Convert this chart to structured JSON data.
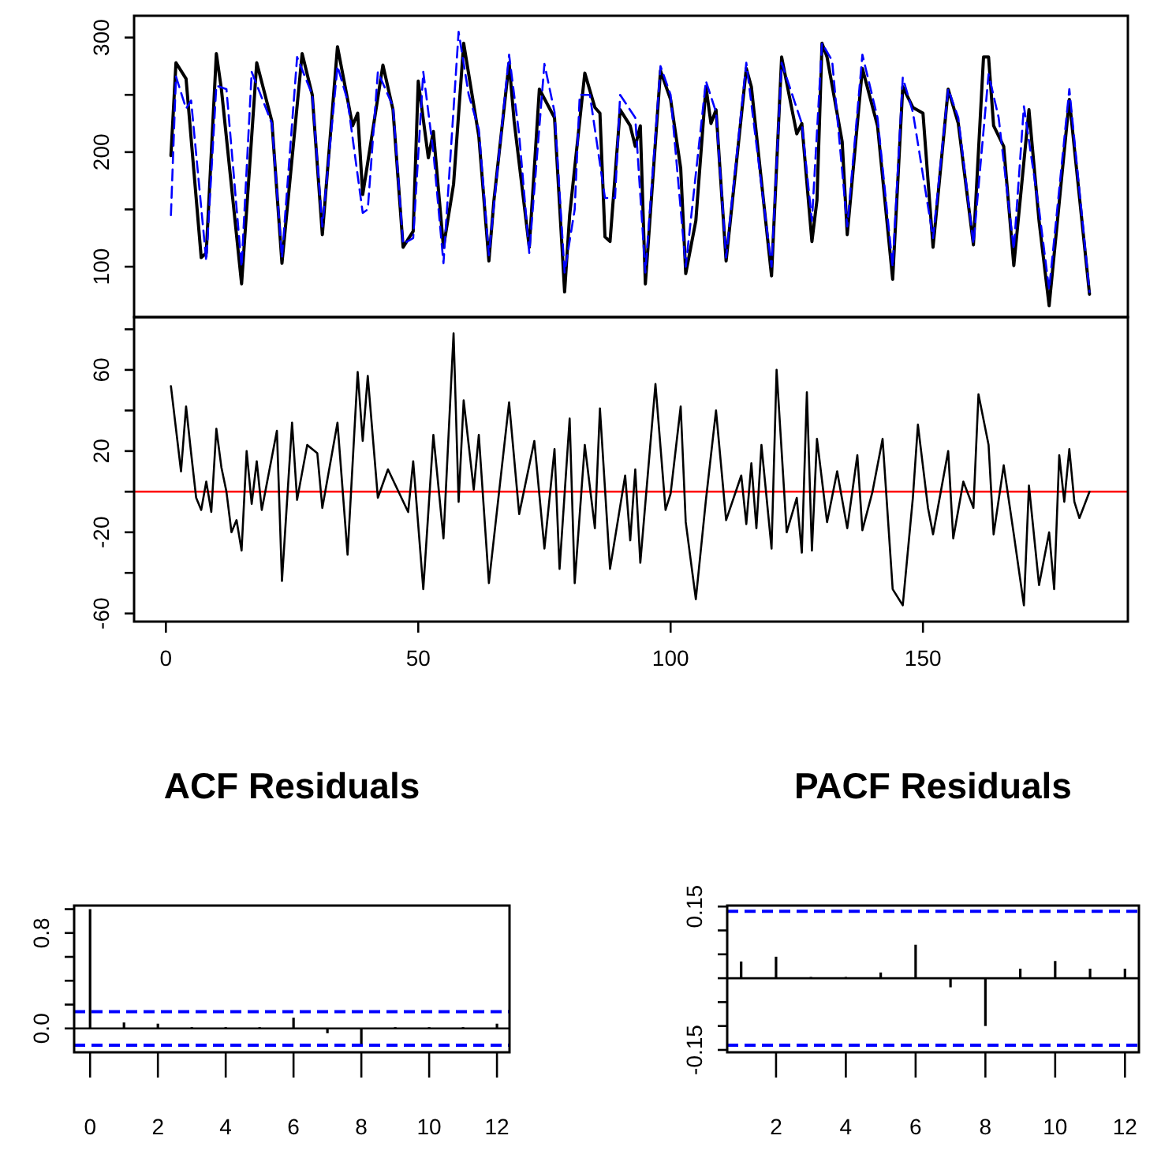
{
  "chart_data": [
    {
      "type": "line",
      "xlim": [
        -6.3,
        190.6
      ],
      "ylim": [
        56,
        319
      ],
      "yticks": [
        100,
        {
          "value": 150,
          "label": null
        },
        200,
        {
          "value": 250,
          "label": null
        },
        300
      ],
      "tick_labels": "y",
      "series": [
        {
          "color": "#000000",
          "x": [
            1,
            2,
            4,
            7,
            8,
            10,
            11,
            15,
            18,
            21,
            23,
            27,
            29,
            31,
            34,
            37,
            38,
            39,
            40,
            43,
            45,
            47,
            49,
            50,
            52,
            53,
            55,
            57,
            59,
            62,
            64,
            65,
            68,
            69,
            72,
            74,
            77,
            79,
            80,
            83,
            85,
            86,
            87,
            88,
            90,
            92,
            93,
            94,
            95,
            98,
            100,
            102,
            103,
            105,
            107,
            108,
            109,
            111,
            115,
            116,
            120,
            122,
            125,
            126,
            128,
            129,
            130,
            131,
            134,
            135,
            138,
            141,
            144,
            146,
            148,
            150,
            152,
            155,
            157,
            160,
            162,
            163,
            164,
            166,
            168,
            171,
            173,
            175,
            179,
            183
          ],
          "values": [
            197,
            278,
            264,
            108,
            112,
            286,
            255,
            85,
            278,
            227,
            103,
            286,
            250,
            128,
            292,
            223,
            234,
            163,
            191,
            276,
            237,
            117,
            131,
            262,
            195,
            218,
            117,
            172,
            295,
            214,
            105,
            158,
            278,
            227,
            117,
            255,
            230,
            78,
            145,
            269,
            239,
            234,
            126,
            122,
            237,
            223,
            205,
            223,
            85,
            271,
            246,
            186,
            94,
            140,
            257,
            225,
            237,
            105,
            273,
            257,
            92,
            283,
            216,
            225,
            122,
            158,
            295,
            283,
            209,
            128,
            273,
            223,
            89,
            257,
            239,
            234,
            117,
            255,
            225,
            119,
            283,
            283,
            223,
            205,
            101,
            237,
            140,
            66,
            246,
            76
          ]
        },
        {
          "color": "#0000ff",
          "line_style": "dashed",
          "x": [
            1,
            2,
            4,
            5,
            8,
            10,
            12,
            15,
            17,
            21,
            23,
            26,
            29,
            31,
            34,
            36,
            39,
            40,
            42,
            45,
            47,
            49,
            51,
            53,
            55,
            58,
            60,
            62,
            64,
            68,
            70,
            72,
            75,
            77,
            79,
            81,
            82,
            84,
            87,
            89,
            90,
            93,
            95,
            98,
            100,
            103,
            107,
            109,
            111,
            115,
            120,
            122,
            126,
            128,
            130,
            132,
            135,
            138,
            141,
            144,
            146,
            148,
            152,
            155,
            157,
            160,
            163,
            165,
            168,
            170,
            173,
            175,
            179,
            183
          ],
          "values": [
            145,
            266,
            238,
            245,
            105,
            258,
            255,
            100,
            270,
            225,
            108,
            283,
            250,
            135,
            275,
            245,
            147,
            150,
            270,
            240,
            120,
            125,
            270,
            200,
            103,
            305,
            250,
            220,
            110,
            285,
            215,
            112,
            277,
            235,
            95,
            150,
            250,
            250,
            160,
            160,
            250,
            230,
            95,
            275,
            250,
            100,
            262,
            235,
            108,
            278,
            100,
            278,
            225,
            140,
            295,
            280,
            135,
            285,
            230,
            100,
            265,
            235,
            125,
            255,
            230,
            120,
            268,
            230,
            115,
            240,
            150,
            80,
            255,
            78
          ]
        }
      ]
    },
    {
      "type": "line",
      "xlim": [
        -6.3,
        190.6
      ],
      "xticks": [
        0,
        50,
        100,
        150
      ],
      "ylim": [
        -64,
        86
      ],
      "yticks": [
        -60,
        {
          "value": -40,
          "label": null
        },
        -20,
        {
          "value": 0,
          "label": null
        },
        20,
        {
          "value": 40,
          "label": null
        },
        60,
        {
          "value": 80,
          "label": null
        }
      ],
      "ref_lines": [
        {
          "axis": "y",
          "value": 0,
          "color": "#ff0000"
        }
      ],
      "series": [
        {
          "color": "#000000",
          "x": [
            1,
            2,
            3,
            4,
            5,
            6,
            7,
            8,
            9,
            10,
            11,
            12,
            13,
            14,
            15,
            16,
            17,
            18,
            19,
            22,
            23,
            25,
            26,
            28,
            30,
            31,
            34,
            36,
            38,
            39,
            40,
            42,
            44,
            48,
            49,
            51,
            53,
            55,
            57,
            58,
            59,
            61,
            62,
            64,
            68,
            70,
            73,
            75,
            77,
            78,
            80,
            81,
            83,
            85,
            86,
            88,
            91,
            92,
            93,
            94,
            97,
            99,
            100,
            102,
            103,
            105,
            107,
            109,
            111,
            114,
            115,
            116,
            117,
            118,
            120,
            121,
            123,
            125,
            126,
            127,
            128,
            129,
            131,
            133,
            135,
            137,
            138,
            140,
            142,
            144,
            146,
            148,
            149,
            151,
            152,
            155,
            156,
            158,
            160,
            161,
            163,
            164,
            166,
            168,
            170,
            171,
            173,
            175,
            176,
            177,
            178,
            179,
            180,
            181,
            183
          ],
          "values": [
            52,
            31,
            10,
            42,
            19,
            -3,
            -9,
            5,
            -10,
            31,
            12,
            0,
            -20,
            -14,
            -29,
            20,
            -6,
            15,
            -9,
            30,
            -44,
            34,
            -4,
            23,
            19,
            -8,
            34,
            -31,
            59,
            25,
            57,
            -3,
            11,
            -10,
            15,
            -48,
            28,
            -23,
            78,
            -5,
            45,
            1,
            28,
            -45,
            44,
            -11,
            25,
            -28,
            21,
            -38,
            36,
            -45,
            23,
            -18,
            41,
            -38,
            8,
            -24,
            11,
            -35,
            53,
            -9,
            -1,
            42,
            -15,
            -53,
            -4,
            40,
            -14,
            8,
            -16,
            14,
            -18,
            23,
            -28,
            60,
            -20,
            -3,
            -30,
            49,
            -29,
            26,
            -15,
            10,
            -18,
            18,
            -19,
            0,
            26,
            -48,
            -56,
            -3,
            33,
            -8,
            -21,
            20,
            -23,
            5,
            -8,
            48,
            23,
            -21,
            13,
            -21,
            -56,
            3,
            -46,
            -20,
            -48,
            18,
            -5,
            21,
            -5,
            -13,
            0
          ]
        }
      ]
    },
    {
      "type": "bar",
      "title": "ACF Residuals",
      "x": [
        0,
        1,
        2,
        3,
        4,
        5,
        6,
        7,
        8,
        9,
        10,
        11,
        12
      ],
      "values": [
        1.0,
        0.05,
        0.04,
        0,
        0,
        0,
        0.09,
        -0.04,
        -0.13,
        0,
        0,
        0,
        0.04
      ],
      "color": "#000000",
      "xlim": [
        -0.47,
        12.37
      ],
      "xticks": [
        0,
        2,
        4,
        6,
        8,
        10,
        12
      ],
      "ylim": [
        -0.2,
        1.03
      ],
      "yticks": [
        {
          "value": 0,
          "label": "0.0"
        },
        {
          "value": 0.2,
          "label": null
        },
        {
          "value": 0.4,
          "label": null
        },
        {
          "value": 0.6,
          "label": null
        },
        {
          "value": 0.8,
          "label": "0.8"
        },
        {
          "value": 1.0,
          "label": null
        }
      ],
      "ref_lines": [
        {
          "axis": "y",
          "value": 0,
          "color": "#000000"
        },
        {
          "axis": "y",
          "value": 0.14,
          "color": "#0000ff",
          "line_style": "dashed"
        },
        {
          "axis": "y",
          "value": -0.14,
          "color": "#0000ff",
          "line_style": "dashed"
        }
      ]
    },
    {
      "type": "bar",
      "title": "PACF Residuals",
      "x": [
        1,
        2,
        3,
        4,
        5,
        6,
        7,
        8,
        9,
        10,
        11,
        12
      ],
      "values": [
        0.035,
        0.045,
        0,
        0,
        0.012,
        0.07,
        -0.019,
        -0.1,
        0.02,
        0.036,
        0.02,
        0.02
      ],
      "color": "#000000",
      "xlim": [
        0.6,
        12.4
      ],
      "xticks": [
        2,
        4,
        6,
        8,
        10,
        12
      ],
      "ylim": [
        -0.155,
        0.152
      ],
      "yticks": [
        {
          "value": -0.15,
          "label": "-0.15"
        },
        {
          "value": -0.1,
          "label": null
        },
        {
          "value": -0.05,
          "label": null
        },
        {
          "value": 0,
          "label": null
        },
        {
          "value": 0.05,
          "label": null
        },
        {
          "value": 0.1,
          "label": null
        },
        {
          "value": 0.15,
          "label": "0.15"
        }
      ],
      "ref_lines": [
        {
          "axis": "y",
          "value": 0,
          "color": "#000000"
        },
        {
          "axis": "y",
          "value": 0.14,
          "color": "#0000ff",
          "line_style": "dashed"
        },
        {
          "axis": "y",
          "value": -0.14,
          "color": "#0000ff",
          "line_style": "dashed"
        }
      ]
    }
  ]
}
